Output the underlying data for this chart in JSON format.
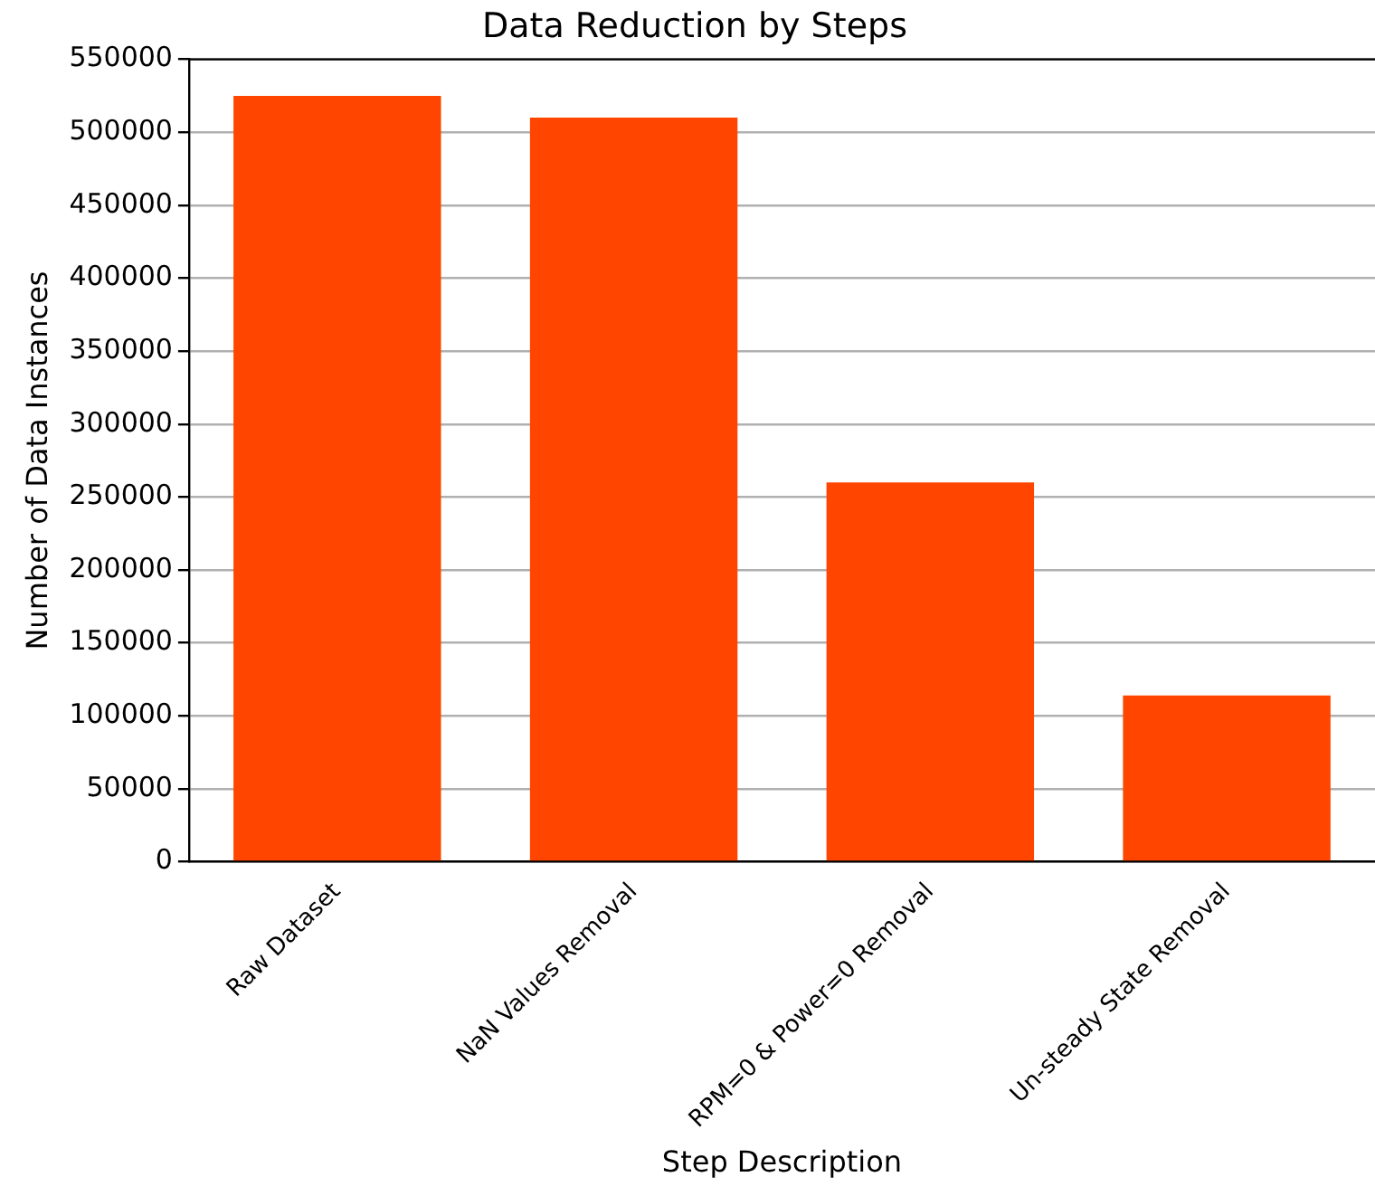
{
  "chart_data": {
    "type": "bar",
    "title": "Data Reduction by Steps",
    "xlabel": "Step Description",
    "ylabel": "Number of Data Instances",
    "categories": [
      "Raw Dataset",
      "NaN Values Removal",
      "RPM=0 & Power=0 Removal",
      "Un-steady State Removal"
    ],
    "values": [
      525000,
      510000,
      260000,
      114000
    ],
    "color": "#ff4500",
    "ylim": [
      0,
      550000
    ],
    "yticks": [
      0,
      50000,
      100000,
      150000,
      200000,
      250000,
      300000,
      350000,
      400000,
      450000,
      500000,
      550000
    ],
    "grid": "y",
    "legend": false
  }
}
